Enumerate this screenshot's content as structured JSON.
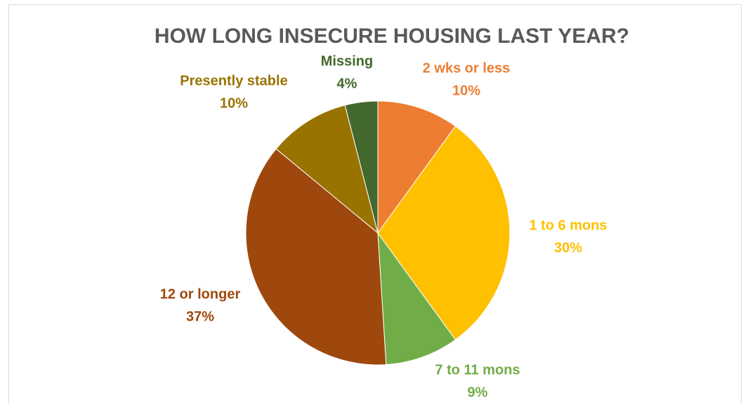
{
  "chart_data": {
    "type": "pie",
    "title": "HOW LONG INSECURE HOUSING LAST YEAR?",
    "categories": [
      "2 wks or less",
      "1 to 6 mons",
      "7 to 11 mons",
      "12 or longer",
      "Presently stable",
      "Missing"
    ],
    "values": [
      10,
      30,
      9,
      37,
      10,
      4
    ],
    "value_labels": [
      "10%",
      "30%",
      "9%",
      "37%",
      "10%",
      "4%"
    ],
    "colors": [
      "#ED7D31",
      "#FFC000",
      "#70AD47",
      "#9E480E",
      "#997300",
      "#43682B"
    ]
  }
}
